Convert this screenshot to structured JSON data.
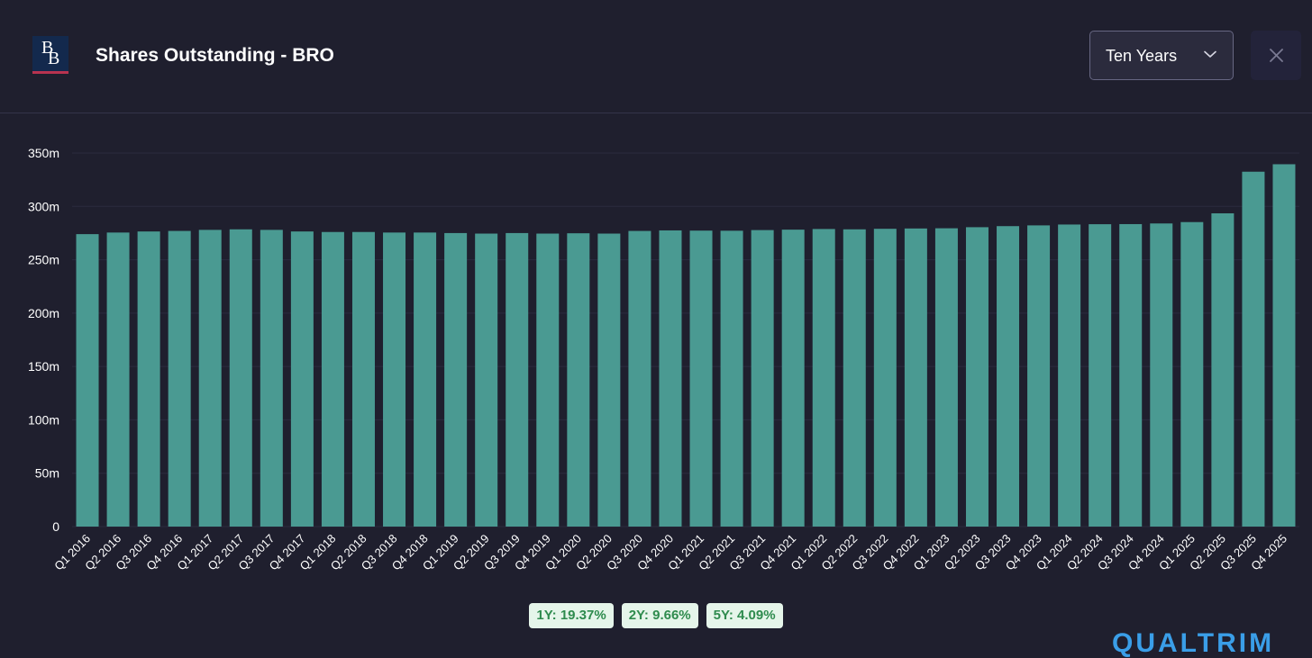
{
  "header": {
    "logo_text_1": "B",
    "logo_text_2": "B",
    "title": "Shares Outstanding - BRO",
    "period_select": {
      "selected": "Ten Years"
    },
    "close_icon": "close-icon"
  },
  "colors": {
    "background": "#1f1f2e",
    "bar": "#4a9a92",
    "stat_bg": "#e5f5ea",
    "stat_text": "#2e8b4e"
  },
  "stats": [
    {
      "label": "1Y: 19.37%"
    },
    {
      "label": "2Y: 9.66%"
    },
    {
      "label": "5Y: 4.09%"
    }
  ],
  "watermark": "QUALTRIM",
  "chart_data": {
    "type": "bar",
    "title": "Shares Outstanding - BRO",
    "xlabel": "",
    "ylabel": "",
    "grid": true,
    "ylim": [
      0,
      350
    ],
    "y_unit_suffix": "m",
    "y_ticks": [
      {
        "value": 0,
        "label": "0"
      },
      {
        "value": 50,
        "label": "50m"
      },
      {
        "value": 100,
        "label": "100m"
      },
      {
        "value": 150,
        "label": "150m"
      },
      {
        "value": 200,
        "label": "200m"
      },
      {
        "value": 250,
        "label": "250m"
      },
      {
        "value": 300,
        "label": "300m"
      },
      {
        "value": 350,
        "label": "350m"
      }
    ],
    "categories": [
      "Q1 2016",
      "Q2 2016",
      "Q3 2016",
      "Q4 2016",
      "Q1 2017",
      "Q2 2017",
      "Q3 2017",
      "Q4 2017",
      "Q1 2018",
      "Q2 2018",
      "Q3 2018",
      "Q4 2018",
      "Q1 2019",
      "Q2 2019",
      "Q3 2019",
      "Q4 2019",
      "Q1 2020",
      "Q2 2020",
      "Q3 2020",
      "Q4 2020",
      "Q1 2021",
      "Q2 2021",
      "Q3 2021",
      "Q4 2021",
      "Q1 2022",
      "Q2 2022",
      "Q3 2022",
      "Q4 2022",
      "Q1 2023",
      "Q2 2023",
      "Q3 2023",
      "Q4 2023",
      "Q1 2024",
      "Q2 2024",
      "Q3 2024",
      "Q4 2024",
      "Q1 2025",
      "Q2 2025",
      "Q3 2025",
      "Q4 2025"
    ],
    "values": [
      274,
      275.5,
      276.5,
      277,
      278,
      278.5,
      278,
      276.5,
      276,
      276,
      275.5,
      275.5,
      275,
      274.5,
      275,
      274.5,
      274.8,
      274.5,
      277,
      277.5,
      277.3,
      277.2,
      277.8,
      278.2,
      278.8,
      278.5,
      279,
      279.3,
      279.5,
      280.5,
      281.5,
      282.2,
      283,
      283.3,
      283.4,
      284,
      285.3,
      293.5,
      332.5,
      339.5
    ]
  }
}
